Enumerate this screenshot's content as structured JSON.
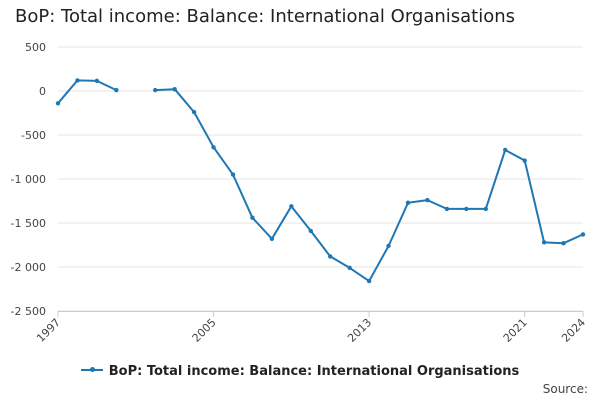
{
  "chart_data": {
    "type": "line",
    "title": "BoP: Total income: Balance: International Organisations",
    "x": [
      1997,
      1998,
      1999,
      2000,
      2001,
      2002,
      2003,
      2004,
      2005,
      2006,
      2007,
      2008,
      2009,
      2010,
      2011,
      2012,
      2013,
      2014,
      2015,
      2016,
      2017,
      2018,
      2019,
      2020,
      2021,
      2022,
      2023,
      2024
    ],
    "series": [
      {
        "name": "BoP: Total income: Balance: International Organisations",
        "color": "#1f77b4",
        "values": [
          -140,
          120,
          115,
          10,
          null,
          10,
          20,
          -240,
          -640,
          -950,
          -1440,
          -1680,
          -1310,
          -1590,
          -1880,
          -2010,
          -2160,
          -1760,
          -1270,
          -1240,
          -1340,
          -1340,
          -1340,
          -670,
          -790,
          -1720,
          -1730,
          -1630
        ]
      }
    ],
    "yticks": [
      "500",
      "0",
      "-500",
      "-1 000",
      "-1 500",
      "-2 000",
      "-2 500"
    ],
    "ytick_values": [
      500,
      0,
      -500,
      -1000,
      -1500,
      -2000,
      -2500
    ],
    "xticks": [
      "1997",
      "2005",
      "2013",
      "2021",
      "2024"
    ],
    "xtick_values": [
      1997,
      2005,
      2013,
      2021,
      2024
    ],
    "ylim": [
      -2500,
      500
    ],
    "xlim": [
      1997,
      2024
    ],
    "grid": true,
    "legend": "bottom",
    "source_label": "Source:"
  }
}
